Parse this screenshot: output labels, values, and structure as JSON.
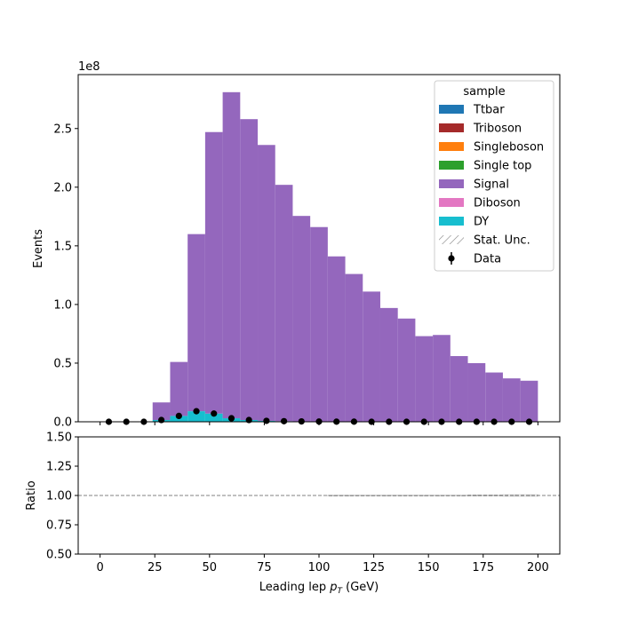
{
  "chart_data": [
    {
      "type": "bar",
      "xlabel_prefix": "Leading lep ",
      "xlabel_var": "p",
      "xlabel_sub": "T",
      "xlabel_suffix": " (GeV)",
      "ylabel": "Events",
      "offset_text": "1e8",
      "xlim": [
        -10,
        210
      ],
      "ylim": [
        0,
        296000000.0
      ],
      "x_ticks": [
        0,
        25,
        50,
        75,
        100,
        125,
        150,
        175,
        200
      ],
      "y_ticks": [
        0.0,
        0.5,
        1.0,
        1.5,
        2.0,
        2.5
      ],
      "y_tick_labels": [
        "0.0",
        "0.5",
        "1.0",
        "1.5",
        "2.0",
        "2.5"
      ],
      "legend": {
        "title": "sample",
        "placement": "top-right",
        "entries": [
          {
            "label": "Ttbar",
            "color": "#1f77b4",
            "kind": "patch"
          },
          {
            "label": "Triboson",
            "color": "#a52a2a",
            "kind": "patch"
          },
          {
            "label": "Singleboson",
            "color": "#ff7f0e",
            "kind": "patch"
          },
          {
            "label": "Single top",
            "color": "#2ca02c",
            "kind": "patch"
          },
          {
            "label": "Signal",
            "color": "#9467bd",
            "kind": "patch"
          },
          {
            "label": "Diboson",
            "color": "#e377c2",
            "kind": "patch"
          },
          {
            "label": "DY",
            "color": "#17becf",
            "kind": "patch"
          },
          {
            "label": "Stat. Unc.",
            "color": "#888888",
            "kind": "hatch"
          },
          {
            "label": "Data",
            "color": "#000000",
            "kind": "errorbar"
          }
        ]
      },
      "bin_edges": [
        0,
        8,
        16,
        24,
        32,
        40,
        48,
        56,
        64,
        72,
        80,
        88,
        96,
        104,
        112,
        120,
        128,
        136,
        144,
        152,
        160,
        168,
        176,
        184,
        192,
        200
      ],
      "series": [
        {
          "name": "DY",
          "color": "#17becf",
          "values": [
            0,
            0,
            0,
            1500000.0,
            5000000.0,
            9000000.0,
            7000000.0,
            3000000.0,
            1500000.0,
            800000.0,
            500000.0,
            300000.0,
            200000.0,
            100000.0,
            100000.0,
            0,
            0,
            0,
            0,
            0,
            0,
            0,
            0,
            0,
            0
          ]
        },
        {
          "name": "Signal",
          "color": "#9467bd",
          "values": [
            0,
            0,
            0,
            15000000.0,
            46000000.0,
            151000000.0,
            240000000.0,
            278000000.0,
            256500000.0,
            235200000.0,
            201500000.0,
            175200000.0,
            165800000.0,
            140900000.0,
            125900000.0,
            111000000.0,
            97000000.0,
            88000000.0,
            73000000.0,
            74000000.0,
            56000000.0,
            50000000.0,
            42000000.0,
            37000000.0,
            35000000.0
          ]
        }
      ],
      "data_points": {
        "name": "Data",
        "x": [
          4,
          12,
          20,
          28,
          36,
          44,
          52,
          60,
          68,
          76,
          84,
          92,
          100,
          108,
          116,
          124,
          132,
          140,
          148,
          156,
          164,
          172,
          180,
          188,
          196
        ],
        "y": [
          0,
          0,
          0,
          1500000.0,
          5000000.0,
          9000000.0,
          7000000.0,
          3000000.0,
          1500000.0,
          800000.0,
          500000.0,
          300000.0,
          200000.0,
          100000.0,
          100000.0,
          0,
          0,
          0,
          0,
          0,
          0,
          0,
          0,
          0,
          0
        ]
      }
    },
    {
      "type": "line",
      "ylabel": "Ratio",
      "xlim": [
        -10,
        210
      ],
      "ylim": [
        0.5,
        1.5
      ],
      "x_ticks": [
        0,
        25,
        50,
        75,
        100,
        125,
        150,
        175,
        200
      ],
      "x_tick_labels": [
        "0",
        "25",
        "50",
        "75",
        "100",
        "125",
        "150",
        "175",
        "200"
      ],
      "y_ticks": [
        0.5,
        0.75,
        1.0,
        1.25,
        1.5
      ],
      "y_tick_labels": [
        "0.50",
        "0.75",
        "1.00",
        "1.25",
        "1.50"
      ],
      "reference_line": 1.0,
      "stat_unc_bands": [
        {
          "x0": 104,
          "x1": 168,
          "lo": 0.998,
          "hi": 1.002
        },
        {
          "x0": 168,
          "x1": 184,
          "lo": 0.995,
          "hi": 1.005
        },
        {
          "x0": 184,
          "x1": 200,
          "lo": 0.993,
          "hi": 1.007
        }
      ]
    }
  ]
}
